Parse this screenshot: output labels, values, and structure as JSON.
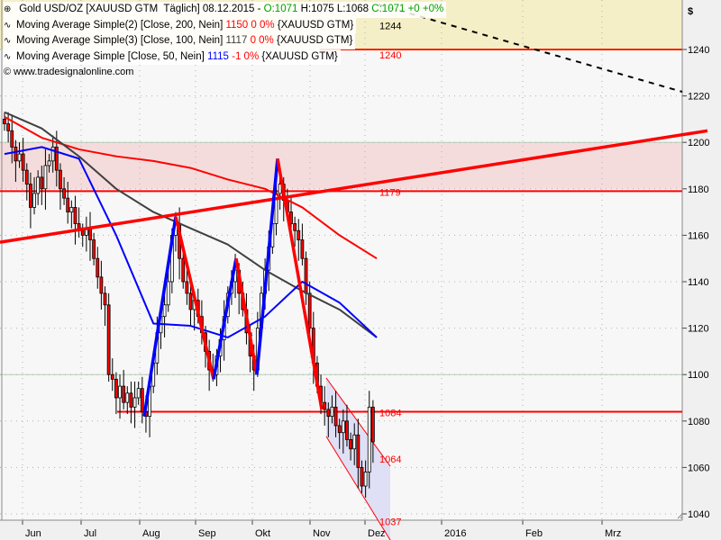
{
  "header": {
    "instrument": "Gold USD/OZ [XAUUSD GTM",
    "period": "Täglich]",
    "date": "08.12.2015 -",
    "open": "O:1071",
    "high": "H:1075",
    "low": "L:1068",
    "close": "C:1071 +0 +0%"
  },
  "indicators": [
    {
      "name": "Moving Average Simple(2) [Close, 200, Nein]",
      "value": "1150",
      "change": "0 0%",
      "symbol": "{XAUUSD GTM}",
      "color": "#ff0000"
    },
    {
      "name": "Moving Average Simple(3) [Close, 100, Nein]",
      "value": "1117",
      "change": "0 0%",
      "symbol": "{XAUUSD GTM}",
      "color": "#404040"
    },
    {
      "name": "Moving Average Simple [Close, 50, Nein]",
      "value": "1115",
      "change": "-1 0%",
      "symbol": "{XAUUSD GTM}",
      "color": "#0000ff"
    }
  ],
  "copyright": "© www.tradesignalonline.com",
  "chart_data": {
    "type": "candlestick",
    "currency_label": "$",
    "ylim": [
      1036,
      1260
    ],
    "y_ticks": [
      1240,
      1220,
      1200,
      1180,
      1160,
      1140,
      1120,
      1100,
      1080,
      1060,
      1040
    ],
    "x_ticks": [
      "Jun",
      "Jul",
      "Aug",
      "Sep",
      "Okt",
      "Nov",
      "Dez",
      "2016",
      "Feb",
      "Mrz"
    ],
    "grid": true,
    "closes": [
      1208,
      1205,
      1198,
      1192,
      1195,
      1188,
      1182,
      1172,
      1178,
      1185,
      1180,
      1190,
      1192,
      1198,
      1188,
      1180,
      1176,
      1170,
      1172,
      1165,
      1162,
      1160,
      1163,
      1158,
      1150,
      1142,
      1135,
      1130,
      1100,
      1098,
      1090,
      1095,
      1088,
      1092,
      1086,
      1090,
      1094,
      1084,
      1082,
      1095,
      1105,
      1118,
      1125,
      1130,
      1140,
      1160,
      1165,
      1150,
      1140,
      1135,
      1128,
      1132,
      1125,
      1118,
      1110,
      1102,
      1100,
      1108,
      1115,
      1125,
      1135,
      1140,
      1145,
      1135,
      1128,
      1118,
      1108,
      1102,
      1120,
      1135,
      1145,
      1155,
      1165,
      1178,
      1182,
      1175,
      1170,
      1165,
      1162,
      1158,
      1150,
      1135,
      1120,
      1105,
      1095,
      1088,
      1085,
      1082,
      1086,
      1078,
      1075,
      1080,
      1072,
      1068,
      1074,
      1060,
      1052,
      1058,
      1086,
      1071
    ],
    "moving_averages": [
      {
        "name": "Moving Average Simple(2) [Close, 200, Nein]",
        "color": "#ff0000",
        "values": [
          1211,
          1202,
          1197,
          1194,
          1192,
          1189,
          1184,
          1180,
          1172,
          1160,
          1150
        ]
      },
      {
        "name": "Moving Average Simple(3) [Close, 100, Nein]",
        "color": "#404040",
        "values": [
          1213,
          1206,
          1194,
          1180,
          1170,
          1163,
          1156,
          1145,
          1136,
          1128,
          1116
        ]
      },
      {
        "name": "Moving Average Simple [Close, 50, Nein]",
        "color": "#0000ff",
        "values": [
          1195,
          1198,
          1193,
          1160,
          1122,
          1121,
          1116,
          1125,
          1140,
          1131,
          1116
        ]
      }
    ],
    "zigzag_prices": [
      1082,
      1168,
      1098,
      1150,
      1100,
      1193,
      1085
    ],
    "levels": [
      {
        "label": "1244",
        "value": 1244
      },
      {
        "label": "1240",
        "value": 1240
      },
      {
        "label": "1179",
        "value": 1179
      },
      {
        "label": "1084",
        "value": 1084
      },
      {
        "label": "1064",
        "value": 1064
      },
      {
        "label": "1037",
        "value": 1037
      }
    ],
    "resistance_zone": [
      1180,
      1200
    ],
    "trendline": [
      1157,
      1205
    ],
    "colors": {
      "up": "#ffffff",
      "down": "#ff0000",
      "zone": "#f5dcdc",
      "top_zone": "#f5efc8",
      "channel": "#dcdcf4"
    }
  }
}
